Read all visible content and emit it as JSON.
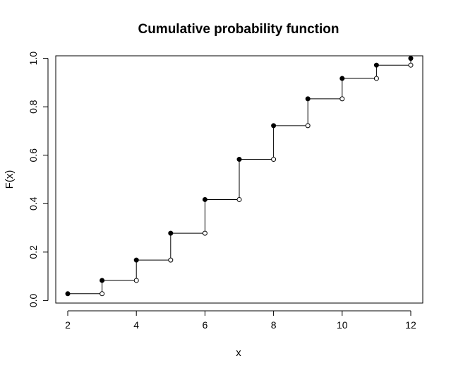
{
  "chart_data": {
    "type": "line",
    "step": true,
    "title": "Cumulative probability function",
    "xlabel": "x",
    "ylabel": "F(x)",
    "xlim": [
      1.65,
      12.35
    ],
    "ylim": [
      -0.0105,
      1.0105
    ],
    "x_ticks": [
      2,
      4,
      6,
      8,
      10,
      12
    ],
    "x_tick_labels": [
      "2",
      "4",
      "6",
      "8",
      "10",
      "12"
    ],
    "y_ticks": [
      0.0,
      0.2,
      0.4,
      0.6,
      0.8,
      1.0
    ],
    "y_tick_labels": [
      "0.0",
      "0.2",
      "0.4",
      "0.6",
      "0.8",
      "1.0"
    ],
    "x": [
      2,
      3,
      4,
      5,
      6,
      7,
      8,
      9,
      10,
      11,
      12
    ],
    "y": [
      0.028,
      0.083,
      0.167,
      0.278,
      0.417,
      0.583,
      0.722,
      0.833,
      0.917,
      0.972,
      1.0
    ],
    "markers": {
      "closed": "value at x",
      "open": "left limit at x"
    },
    "box": true,
    "grid": false,
    "line_color": "#000000"
  }
}
